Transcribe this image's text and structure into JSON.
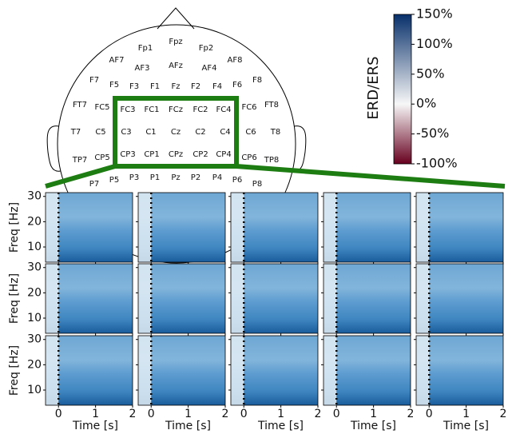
{
  "chart_data": {
    "type": "heatmap-grid",
    "electrodes": [
      "Fp1",
      "Fpz",
      "Fp2",
      "AF7",
      "AF3",
      "AFz",
      "AF4",
      "AF8",
      "F7",
      "F5",
      "F3",
      "F1",
      "Fz",
      "F2",
      "F4",
      "F6",
      "F8",
      "FT7",
      "FC5",
      "FC3",
      "FC1",
      "FCz",
      "FC2",
      "FC4",
      "FC6",
      "FT8",
      "T7",
      "C5",
      "C3",
      "C1",
      "Cz",
      "C2",
      "C4",
      "C6",
      "T8",
      "TP7",
      "CP5",
      "CP3",
      "CP1",
      "CPz",
      "CP2",
      "CP4",
      "CP6",
      "TP8",
      "P7",
      "P5",
      "P3",
      "P1",
      "Pz",
      "P2",
      "P4",
      "P6",
      "P8"
    ],
    "colorbar": {
      "label": "ERD/ERS",
      "lim": [
        -100,
        150
      ],
      "colors": [
        "#67001f",
        "#f7f7f7",
        "#08306b"
      ],
      "ticks": [
        {
          "value": 150,
          "label": "150%"
        },
        {
          "value": 100,
          "label": "100%"
        },
        {
          "value": 50,
          "label": "50%"
        },
        {
          "value": 0,
          "label": "0%"
        },
        {
          "value": -50,
          "label": "-50%"
        },
        {
          "value": -100,
          "label": "-100%"
        }
      ]
    },
    "xlabel": "Time [s]",
    "ylabel": "Freq [Hz]",
    "xlim": [
      -0.35,
      2
    ],
    "ylim": [
      4,
      31.5
    ],
    "xticks": [
      0,
      1,
      2
    ],
    "yticks": [
      10,
      20,
      30
    ]
  }
}
